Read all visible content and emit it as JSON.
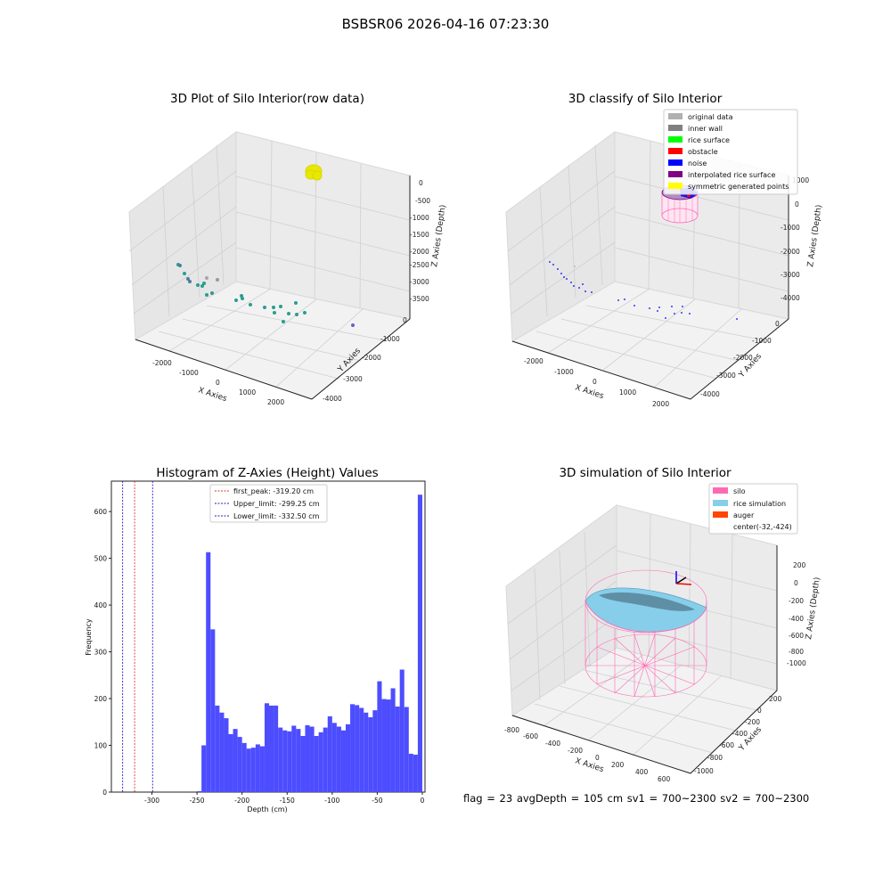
{
  "suptitle": "BSBSR06 2026-04-16 07:23:30",
  "footer": "flag = 23  avgDepth = 105 cm  sv1 = 700~2300  sv2 = 700~2300",
  "chart_data": [
    {
      "type": "scatter",
      "panel": "top-left",
      "title": "3D Plot of Silo Interior(row data)",
      "xlabel": "X Axies",
      "ylabel": "Y Axies",
      "zlabel": "Z Axies (Depth)",
      "x_ticks": [
        "-2000",
        "-1000",
        "0",
        "1000",
        "2000"
      ],
      "y_ticks": [
        "0",
        "-1000",
        "-2000",
        "-3000",
        "-4000"
      ],
      "z_ticks": [
        "0",
        "-500",
        "-1000",
        "-1500",
        "-2000",
        "-2500",
        "-3000",
        "-3500"
      ],
      "point_color": "#2a9d8f",
      "cluster_color": "#ffff00",
      "grid": true
    },
    {
      "type": "scatter",
      "panel": "top-right",
      "title": "3D classify of Silo Interior",
      "xlabel": "X Axies",
      "ylabel": "Y Axies",
      "zlabel": "Z Axies (Depth)",
      "x_ticks": [
        "-2000",
        "-1000",
        "0",
        "1000",
        "2000"
      ],
      "y_ticks": [
        "0",
        "-1000",
        "-2000",
        "-3000",
        "-4000"
      ],
      "z_ticks": [
        "1000",
        "0",
        "-1000",
        "-2000",
        "-3000",
        "-4000"
      ],
      "legend_placement": "top-right",
      "legend": [
        {
          "label": "original data",
          "color": "#b0b0b0"
        },
        {
          "label": "inner wall",
          "color": "#808080"
        },
        {
          "label": "rice surface",
          "color": "#00ff00"
        },
        {
          "label": "obstacle",
          "color": "#ff0000"
        },
        {
          "label": "noise",
          "color": "#0000ff"
        },
        {
          "label": "interpolated rice surface",
          "color": "#800080"
        },
        {
          "label": "symmetric generated points",
          "color": "#ffff00"
        }
      ],
      "grid": true
    },
    {
      "type": "bar",
      "panel": "bottom-left",
      "title": "Histogram of Z-Axies (Height) Values",
      "xlabel": "Depth (cm)",
      "ylabel": "Frequency",
      "xlim": [
        -345,
        3
      ],
      "ylim": [
        0,
        665
      ],
      "bin_width": 5,
      "bin_starts": [
        -335,
        -330,
        -325,
        -320,
        -315,
        -310,
        -305,
        -300,
        -295,
        -290,
        -285,
        -280,
        -275,
        -270,
        -265,
        -260,
        -255,
        -250,
        -245,
        -240,
        -235,
        -230,
        -225,
        -220,
        -215,
        -210,
        -205,
        -200,
        -195,
        -190,
        -185,
        -180,
        -175,
        -170,
        -165,
        -160,
        -155,
        -150,
        -145,
        -140,
        -135,
        -130,
        -125,
        -120,
        -115,
        -110,
        -105,
        -100,
        -95,
        -90,
        -85,
        -80,
        -75,
        -70,
        -65,
        -60,
        -55,
        -50,
        -45,
        -40,
        -35,
        -30,
        -25,
        -20,
        -15,
        -10,
        -5
      ],
      "values": [
        2,
        100,
        513,
        348,
        185,
        170,
        158,
        124,
        135,
        118,
        105,
        93,
        95,
        102,
        98,
        190,
        185,
        185,
        138,
        132,
        130,
        142,
        135,
        120,
        143,
        140,
        120,
        128,
        138,
        162,
        148,
        140,
        132,
        145,
        188,
        186,
        180,
        170,
        160,
        175,
        237,
        199,
        198,
        222,
        183,
        262,
        182,
        82,
        80,
        636
      ],
      "value_bin_offset": 17,
      "x_ticks": [
        "-300",
        "-250",
        "-200",
        "-150",
        "-100",
        "-50",
        "0"
      ],
      "x_tick_values": [
        -300,
        -250,
        -200,
        -150,
        -100,
        -50,
        0
      ],
      "y_ticks": [
        "0",
        "100",
        "200",
        "300",
        "400",
        "500",
        "600"
      ],
      "y_tick_values": [
        0,
        100,
        200,
        300,
        400,
        500,
        600
      ],
      "bar_color": "#4d4dff",
      "vlines": [
        {
          "label": "first_peak: -319.20 cm",
          "x": -319.2,
          "color": "#e03030"
        },
        {
          "label": "Upper_limit: -299.25 cm",
          "x": -299.25,
          "color": "#2020c0"
        },
        {
          "label": "Lower_limit: -332.50 cm",
          "x": -332.5,
          "color": "#2020c0"
        }
      ],
      "legend_placement": "top-center",
      "grid": false
    },
    {
      "type": "scatter",
      "panel": "bottom-right",
      "title": "3D simulation of Silo Interior",
      "xlabel": "X Axies",
      "ylabel": "Y Axies",
      "zlabel": "Z Axies (Depth)",
      "x_ticks": [
        "-800",
        "-600",
        "-400",
        "-200",
        "0",
        "200",
        "400",
        "600"
      ],
      "y_ticks": [
        "200",
        "0",
        "-200",
        "-400",
        "-600",
        "-800",
        "-1000"
      ],
      "z_ticks": [
        "200",
        "0",
        "-200",
        "-400",
        "-600",
        "-800",
        "-1000"
      ],
      "legend_placement": "top-right",
      "legend": [
        {
          "label": "silo",
          "color": "#ff69b4"
        },
        {
          "label": "rice simulation",
          "color": "#87ceeb"
        },
        {
          "label": "auger",
          "color": "#ff4500"
        },
        {
          "label": "center(-32,-424)",
          "color": ""
        }
      ],
      "grid": true
    }
  ]
}
